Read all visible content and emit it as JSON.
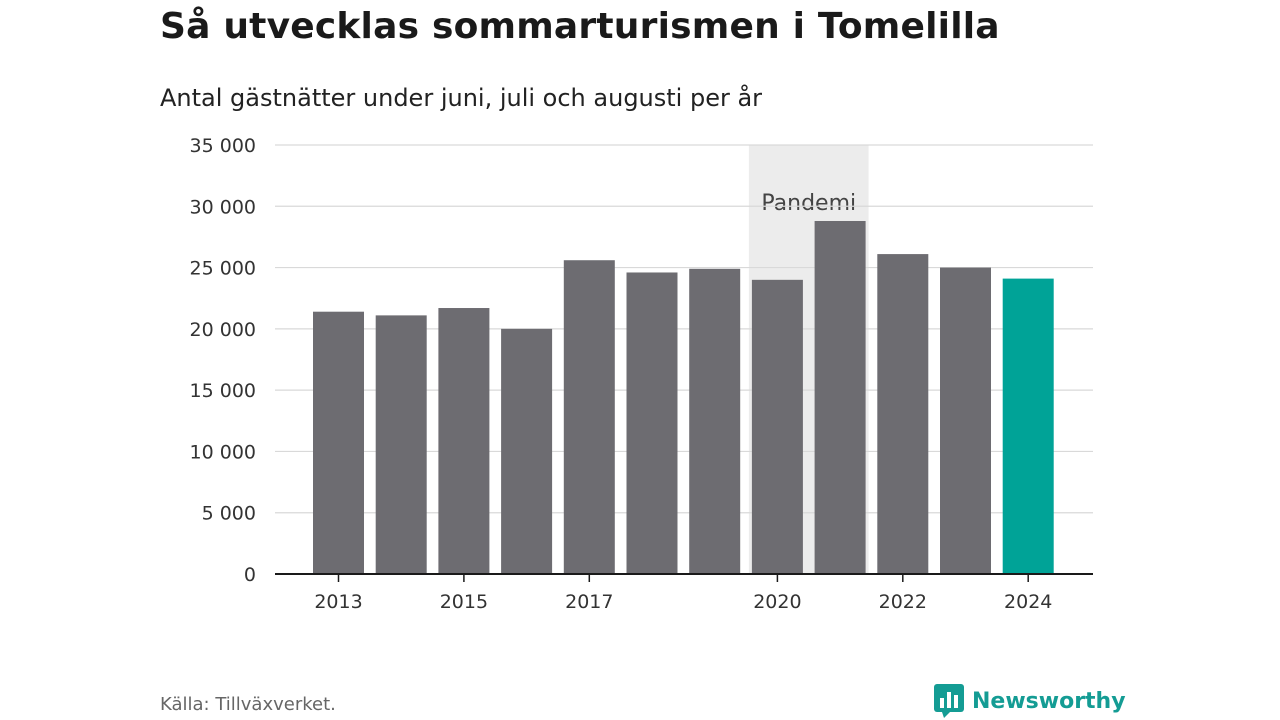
{
  "header": {
    "title": "Så utvecklas sommarturismen i Tomelilla",
    "subtitle": "Antal gästnätter under juni, juli och augusti per år"
  },
  "footer": {
    "source": "Källa: Tillväxverket.",
    "brand": "Newsworthy",
    "brand_icon": "bar-chart-logo-icon"
  },
  "colors": {
    "bar": "#6d6c71",
    "highlight": "#00a397",
    "band": "#ececec",
    "grid": "#d9d9d9",
    "axis": "#1a1a1a",
    "brand": "#149c94"
  },
  "chart_data": {
    "type": "bar",
    "categories": [
      "2013",
      "2014",
      "2015",
      "2016",
      "2017",
      "2018",
      "2019",
      "2020",
      "2021",
      "2022",
      "2023",
      "2024"
    ],
    "values": [
      21400,
      21100,
      21700,
      20000,
      25600,
      24600,
      24900,
      24000,
      28800,
      26100,
      25000,
      24100
    ],
    "highlight_category": "2024",
    "ylim": [
      0,
      35000
    ],
    "yticks": [
      0,
      5000,
      10000,
      15000,
      20000,
      25000,
      30000,
      35000
    ],
    "ytick_labels": [
      "0",
      "5 000",
      "10 000",
      "15 000",
      "20 000",
      "25 000",
      "30 000",
      "35 000"
    ],
    "xtick_labels": [
      "2013",
      "2015",
      "2017",
      "2020",
      "2022",
      "2024"
    ],
    "annotation": {
      "label": "Pandemi",
      "from": "2020",
      "to": "2021"
    },
    "grid": true,
    "legend": "none"
  }
}
